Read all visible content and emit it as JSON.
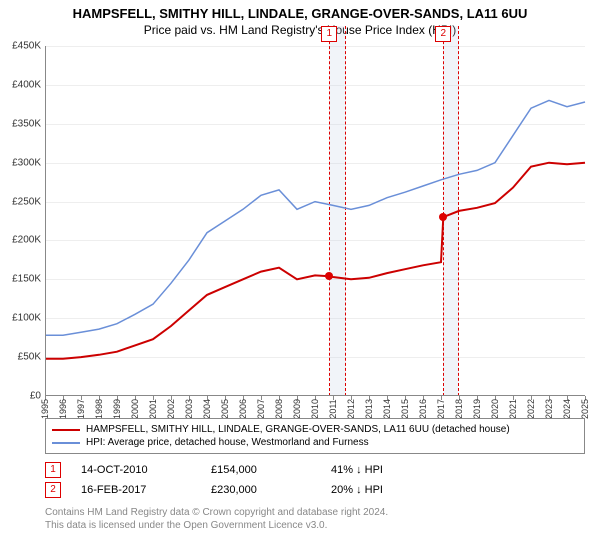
{
  "title": "HAMPSFELL, SMITHY HILL, LINDALE, GRANGE-OVER-SANDS, LA11 6UU",
  "subtitle": "Price paid vs. HM Land Registry's House Price Index (HPI)",
  "chart": {
    "type": "line",
    "background_color": "#ffffff",
    "grid_color": "#eeeeee",
    "axis_color": "#888888",
    "label_fontsize": 10,
    "x": {
      "min": 1995,
      "max": 2025,
      "years": [
        1995,
        1996,
        1997,
        1998,
        1999,
        2000,
        2001,
        2002,
        2003,
        2004,
        2005,
        2006,
        2007,
        2008,
        2009,
        2010,
        2011,
        2012,
        2013,
        2014,
        2015,
        2016,
        2017,
        2018,
        2019,
        2020,
        2021,
        2022,
        2023,
        2024,
        2025
      ]
    },
    "y": {
      "min": 0,
      "max": 450000,
      "ticks": [
        0,
        50000,
        100000,
        150000,
        200000,
        250000,
        300000,
        350000,
        400000,
        450000
      ],
      "labels": [
        "£0",
        "£50K",
        "£100K",
        "£150K",
        "£200K",
        "£250K",
        "£300K",
        "£350K",
        "£400K",
        "£450K"
      ]
    },
    "series": [
      {
        "id": "property",
        "label": "HAMPSFELL, SMITHY HILL, LINDALE, GRANGE-OVER-SANDS, LA11 6UU (detached house)",
        "color": "#cc0000",
        "line_width": 2,
        "points": [
          [
            1995,
            48000
          ],
          [
            1996,
            48000
          ],
          [
            1997,
            50000
          ],
          [
            1998,
            53000
          ],
          [
            1999,
            57000
          ],
          [
            2000,
            65000
          ],
          [
            2001,
            73000
          ],
          [
            2002,
            90000
          ],
          [
            2003,
            110000
          ],
          [
            2004,
            130000
          ],
          [
            2005,
            140000
          ],
          [
            2006,
            150000
          ],
          [
            2007,
            160000
          ],
          [
            2008,
            165000
          ],
          [
            2009,
            150000
          ],
          [
            2010,
            155000
          ],
          [
            2010.79,
            154000
          ],
          [
            2011,
            153000
          ],
          [
            2012,
            150000
          ],
          [
            2013,
            152000
          ],
          [
            2014,
            158000
          ],
          [
            2015,
            163000
          ],
          [
            2016,
            168000
          ],
          [
            2017,
            172000
          ],
          [
            2017.13,
            230000
          ],
          [
            2018,
            238000
          ],
          [
            2019,
            242000
          ],
          [
            2020,
            248000
          ],
          [
            2021,
            268000
          ],
          [
            2022,
            295000
          ],
          [
            2023,
            300000
          ],
          [
            2024,
            298000
          ],
          [
            2025,
            300000
          ]
        ]
      },
      {
        "id": "hpi",
        "label": "HPI: Average price, detached house, Westmorland and Furness",
        "color": "#6a8fd8",
        "line_width": 1.5,
        "points": [
          [
            1995,
            78000
          ],
          [
            1996,
            78000
          ],
          [
            1997,
            82000
          ],
          [
            1998,
            86000
          ],
          [
            1999,
            93000
          ],
          [
            2000,
            105000
          ],
          [
            2001,
            118000
          ],
          [
            2002,
            145000
          ],
          [
            2003,
            175000
          ],
          [
            2004,
            210000
          ],
          [
            2005,
            225000
          ],
          [
            2006,
            240000
          ],
          [
            2007,
            258000
          ],
          [
            2008,
            265000
          ],
          [
            2009,
            240000
          ],
          [
            2010,
            250000
          ],
          [
            2011,
            245000
          ],
          [
            2012,
            240000
          ],
          [
            2013,
            245000
          ],
          [
            2014,
            255000
          ],
          [
            2015,
            262000
          ],
          [
            2016,
            270000
          ],
          [
            2017,
            278000
          ],
          [
            2018,
            285000
          ],
          [
            2019,
            290000
          ],
          [
            2020,
            300000
          ],
          [
            2021,
            335000
          ],
          [
            2022,
            370000
          ],
          [
            2023,
            380000
          ],
          [
            2024,
            372000
          ],
          [
            2025,
            378000
          ]
        ]
      }
    ],
    "markers": [
      {
        "n": "1",
        "start": 2010.79,
        "end": 2011.6,
        "dot_x": 2010.79,
        "dot_y": 154000
      },
      {
        "n": "2",
        "start": 2017.13,
        "end": 2017.9,
        "dot_x": 2017.13,
        "dot_y": 230000
      }
    ],
    "marker_color": "#cc0000",
    "marker_band_color": "rgba(200,210,230,0.25)"
  },
  "legend": {
    "items": [
      {
        "color": "#cc0000",
        "label_path": "chart.series.0.label"
      },
      {
        "color": "#6a8fd8",
        "label_path": "chart.series.1.label"
      }
    ]
  },
  "transactions": [
    {
      "n": "1",
      "date": "14-OCT-2010",
      "price": "£154,000",
      "diff": "41% ↓ HPI"
    },
    {
      "n": "2",
      "date": "16-FEB-2017",
      "price": "£230,000",
      "diff": "20% ↓ HPI"
    }
  ],
  "footer": {
    "line1": "Contains HM Land Registry data © Crown copyright and database right 2024.",
    "line2": "This data is licensed under the Open Government Licence v3.0."
  }
}
